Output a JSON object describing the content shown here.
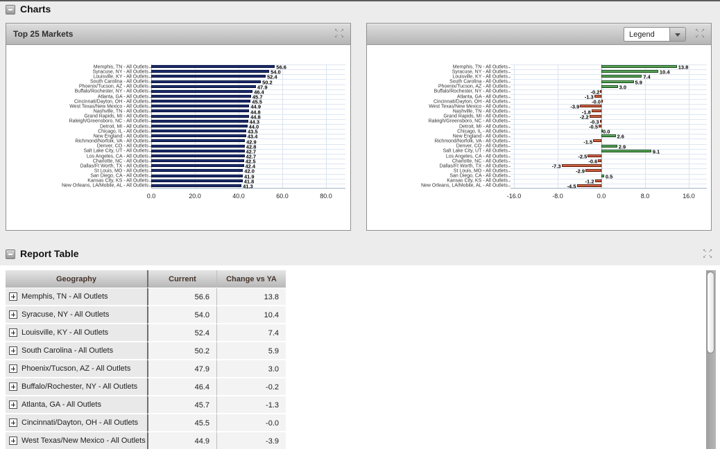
{
  "sections": {
    "charts_title": "Charts",
    "report_title": "Report Table"
  },
  "charts_section": {
    "left_panel": {
      "title": "Top 25 Markets"
    },
    "right_panel": {
      "legend_dropdown_value": "Legend"
    }
  },
  "icons": {
    "expand_arrows": [
      "↖",
      "↗",
      "↙",
      "↘"
    ]
  },
  "colors": {
    "bar_navy": "#1b2c6e",
    "bar_green": "#4c9a4c",
    "bar_red": "#c65535",
    "grid_line": "#dde6f1",
    "panel_header_top": "#dedede",
    "panel_header_bottom": "#b5b5b5"
  },
  "chart_data": [
    {
      "type": "bar",
      "orientation": "horizontal",
      "title": "Top 25 Markets",
      "xlabel": "",
      "ylabel": "",
      "grid": true,
      "legend_position": "none",
      "xlim": [
        0,
        88.9
      ],
      "ticks": [
        {
          "value": 0,
          "label": "0.0"
        },
        {
          "value": 20,
          "label": "20.0"
        },
        {
          "value": 40,
          "label": "40.0"
        },
        {
          "value": 60,
          "label": "60.0"
        },
        {
          "value": 80,
          "label": "80.0"
        }
      ],
      "categories": [
        "Memphis, TN - All Outlets",
        "Syracuse, NY - All Outlets",
        "Louisville, KY - All Outlets",
        "South Carolina - All Outlets",
        "Phoenix/Tucson, AZ - All Outlets",
        "Buffalo/Rochester, NY - All Outlets",
        "Atlanta, GA - All Outlets",
        "Cincinnati/Dayton, OH - All Outlets",
        "West Texas/New Mexico - All Outlets",
        "Nashville, TN - All Outlets",
        "Grand Rapids, MI - All Outlets",
        "Raleigh/Greensboro, NC - All Outlets",
        "Detroit, MI - All Outlets",
        "Chicago, IL - All Outlets",
        "New England - All Outlets",
        "Richmond/Norfolk, VA - All Outlets",
        "Denver, CO - All Outlets",
        "Salt Lake City, UT - All Outlets",
        "Los Angeles, CA - All Outlets",
        "Charlotte, NC - All Outlets",
        "Dallas/Ft Worth, TX - All Outlets",
        "St Louis, MO - All Outlets",
        "San Diego, CA - All Outlets",
        "Kansas City, KS - All Outlets",
        "New Orleans, LA/Mobile, AL - All Outlets"
      ],
      "values": [
        56.6,
        54.0,
        52.4,
        50.2,
        47.9,
        46.4,
        45.7,
        45.5,
        44.9,
        44.8,
        44.8,
        44.3,
        44.0,
        43.5,
        43.4,
        42.9,
        42.8,
        42.7,
        42.7,
        42.5,
        42.4,
        42.0,
        41.9,
        41.8,
        41.3
      ],
      "value_labels": [
        "56.6",
        "54.0",
        "52.4",
        "50.2",
        "47.9",
        "46.4",
        "45.7",
        "45.5",
        "44.9",
        "44.8",
        "44.8",
        "44.3",
        "44.0",
        "43.5",
        "43.4",
        "42.9",
        "42.8",
        "42.7",
        "42.7",
        "42.5",
        "42.4",
        "42.0",
        "41.9",
        "41.8",
        "41.3"
      ],
      "bar_style": "navy"
    },
    {
      "type": "bar",
      "orientation": "horizontal",
      "title": "",
      "xlabel": "",
      "ylabel": "",
      "grid": true,
      "legend_position": "header-dropdown",
      "xlim": [
        -16.63,
        19.3
      ],
      "ticks": [
        {
          "value": -16,
          "label": "-16.0"
        },
        {
          "value": -8,
          "label": "-8.0"
        },
        {
          "value": 0,
          "label": "0.0"
        },
        {
          "value": 8,
          "label": "8.0"
        },
        {
          "value": 16,
          "label": "16.0"
        }
      ],
      "categories": [
        "Memphis, TN - All Outlets",
        "Syracuse, NY - All Outlets",
        "Louisville, KY - All Outlets",
        "South Carolina - All Outlets",
        "Phoenix/Tucson, AZ - All Outlets",
        "Buffalo/Rochester, NY - All Outlets",
        "Atlanta, GA - All Outlets",
        "Cincinnati/Dayton, OH - All Outlets",
        "West Texas/New Mexico - All Outlets",
        "Nashville, TN - All Outlets",
        "Grand Rapids, MI - All Outlets",
        "Raleigh/Greensboro, NC - All Outlets",
        "Detroit, MI - All Outlets",
        "Chicago, IL - All Outlets",
        "New England - All Outlets",
        "Richmond/Norfolk, VA - All Outlets",
        "Denver, CO - All Outlets",
        "Salt Lake City, UT - All Outlets",
        "Los Angeles, CA - All Outlets",
        "Charlotte, NC - All Outlets",
        "Dallas/Ft Worth, TX - All Outlets",
        "St Louis, MO - All Outlets",
        "San Diego, CA - All Outlets",
        "Kansas City, KS - All Outlets",
        "New Orleans, LA/Mobile, AL - All Outlets"
      ],
      "values": [
        13.8,
        10.4,
        7.4,
        5.9,
        3.0,
        -0.2,
        -1.3,
        -0.0,
        -3.9,
        -1.8,
        -2.2,
        -0.3,
        -0.5,
        0.0,
        2.6,
        -1.5,
        2.9,
        9.1,
        -2.5,
        -0.6,
        -7.3,
        -2.9,
        0.5,
        -1.2,
        -4.5
      ],
      "value_labels": [
        "13.8",
        "10.4",
        "7.4",
        "5.9",
        "3.0",
        "-0.2",
        "-1.3",
        "-0.0",
        "-3.9",
        "-1.8",
        "-2.2",
        "-0.3",
        "-0.5",
        "0.0",
        "2.6",
        "-1.5",
        "2.9",
        "9.1",
        "-2.5",
        "-0.6",
        "-7.3",
        "-2.9",
        "0.5",
        "-1.2",
        "-4.5"
      ],
      "bar_style": "diverging"
    }
  ],
  "table": {
    "columns": [
      "Geography",
      "Current",
      "Change vs YA"
    ],
    "rows": [
      {
        "geography": "Memphis, TN - All Outlets",
        "current": "56.6",
        "change": "13.8"
      },
      {
        "geography": "Syracuse, NY - All Outlets",
        "current": "54.0",
        "change": "10.4"
      },
      {
        "geography": "Louisville, KY - All Outlets",
        "current": "52.4",
        "change": "7.4"
      },
      {
        "geography": "South Carolina - All Outlets",
        "current": "50.2",
        "change": "5.9"
      },
      {
        "geography": "Phoenix/Tucson, AZ - All Outlets",
        "current": "47.9",
        "change": "3.0"
      },
      {
        "geography": "Buffalo/Rochester, NY - All Outlets",
        "current": "46.4",
        "change": "-0.2"
      },
      {
        "geography": "Atlanta, GA - All Outlets",
        "current": "45.7",
        "change": "-1.3"
      },
      {
        "geography": "Cincinnati/Dayton, OH - All Outlets",
        "current": "45.5",
        "change": "-0.0"
      },
      {
        "geography": "West Texas/New Mexico - All Outlets",
        "current": "44.9",
        "change": "-3.9"
      }
    ]
  }
}
